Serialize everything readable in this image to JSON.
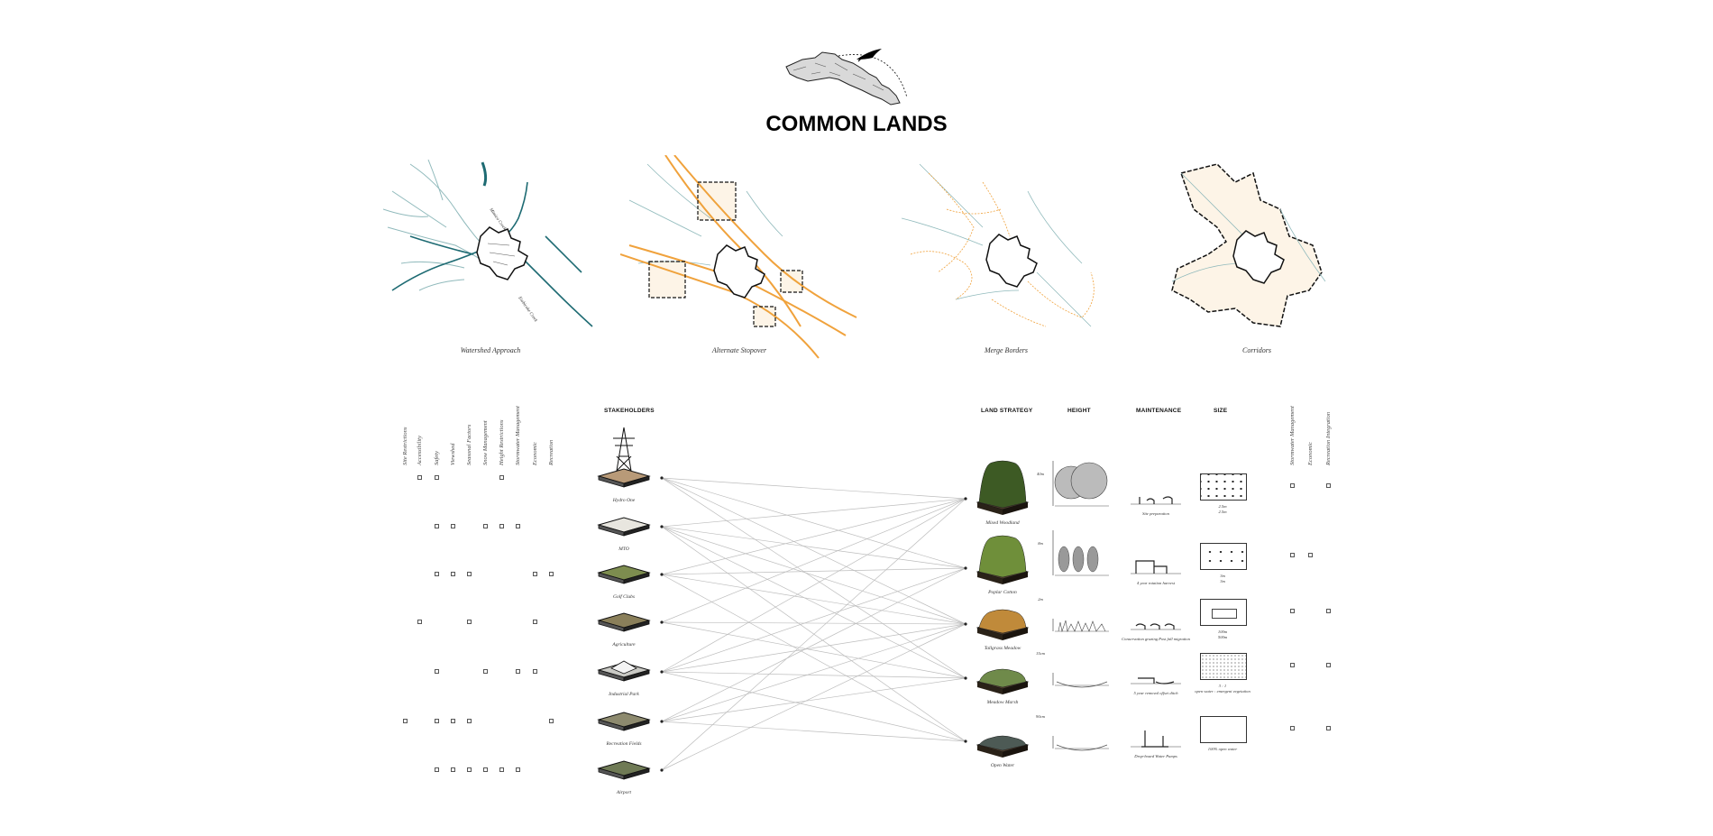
{
  "title": "COMMON LANDS",
  "maps": [
    {
      "label": "Watershed Approach",
      "creek_labels": [
        "Mimico Creek",
        "Etobicoke Creek"
      ]
    },
    {
      "label": "Alternate Stopover"
    },
    {
      "label": "Merge Borders"
    },
    {
      "label": "Corridors"
    }
  ],
  "criteria_left": [
    "Site Restrictions",
    "Accessibility",
    "Safety",
    "Viewshed",
    "Seasonal Factors",
    "Snow Management",
    "Height Restrictions",
    "Stormwater Management",
    "Economic",
    "Recreation"
  ],
  "criteria_right": [
    "Stormwater Management",
    "Economic",
    "Recreation Integration"
  ],
  "headers": {
    "stakeholders": "STAKEHOLDERS",
    "land_strategy": "LAND STRATEGY",
    "height": "HEIGHT",
    "maintenance": "MAINTENANCE",
    "size": "SIZE"
  },
  "stakeholders": [
    {
      "name": "Hydro One",
      "checks": [
        1,
        2,
        6
      ]
    },
    {
      "name": "MTO",
      "checks": [
        2,
        3,
        5,
        6,
        7
      ]
    },
    {
      "name": "Golf Clubs",
      "checks": [
        2,
        3,
        4,
        8,
        9
      ]
    },
    {
      "name": "Agriculture",
      "checks": [
        1,
        4,
        8
      ]
    },
    {
      "name": "Industrial Park",
      "checks": [
        2,
        5,
        7,
        8
      ]
    },
    {
      "name": "Recreation Fields",
      "checks": [
        0,
        2,
        3,
        4,
        9
      ]
    },
    {
      "name": "Airport",
      "checks": [
        2,
        3,
        4,
        5,
        6,
        7
      ]
    }
  ],
  "strategies": [
    {
      "name": "Mixed Woodland",
      "height": "40m",
      "maintenance": "Site preparation",
      "size_a": "2.5m",
      "size_b": "2.5m",
      "checks": [
        0,
        2
      ]
    },
    {
      "name": "Poplar Cotton",
      "height": "8m",
      "maintenance": "4 year rotation harvest",
      "size_a": "3m",
      "size_b": "3m",
      "checks": [
        0,
        1
      ]
    },
    {
      "name": "Tallgrass Meadow",
      "height": "2m",
      "maintenance": "Conservation grazing Post fall migration",
      "size_a": "100m",
      "size_b": "500m",
      "checks": [
        0,
        2
      ]
    },
    {
      "name": "Meadow Marsh",
      "height": "15cm",
      "maintenance": "5 year removal offset ditch",
      "size_a": "3 : 1",
      "size_b": "open water : emergent vegetation",
      "checks": [
        0,
        2
      ]
    },
    {
      "name": "Open Water",
      "height": "90cm",
      "maintenance": "Drop-board Water Pumps",
      "size_a": "100% open water",
      "size_b": "",
      "checks": [
        0,
        2
      ]
    }
  ],
  "connections": [
    [
      0,
      0
    ],
    [
      0,
      1
    ],
    [
      0,
      2
    ],
    [
      0,
      3
    ],
    [
      1,
      0
    ],
    [
      1,
      1
    ],
    [
      1,
      2
    ],
    [
      1,
      3
    ],
    [
      1,
      4
    ],
    [
      2,
      0
    ],
    [
      2,
      1
    ],
    [
      2,
      2
    ],
    [
      2,
      4
    ],
    [
      3,
      0
    ],
    [
      3,
      2
    ],
    [
      3,
      3
    ],
    [
      4,
      0
    ],
    [
      4,
      1
    ],
    [
      4,
      2
    ],
    [
      4,
      3
    ],
    [
      4,
      4
    ],
    [
      5,
      1
    ],
    [
      5,
      2
    ],
    [
      5,
      3
    ],
    [
      5,
      4
    ],
    [
      6,
      0
    ],
    [
      6,
      2
    ]
  ],
  "colors": {
    "water": "#1e6b73",
    "water_light": "#8fb9bb",
    "flyway": "#f0a23c",
    "border": "#111111",
    "site": "#777777"
  }
}
